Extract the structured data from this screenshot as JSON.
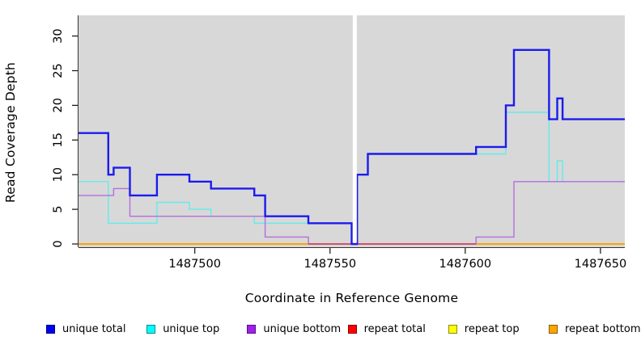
{
  "chart_data": {
    "type": "line",
    "subtype": "step",
    "title": "",
    "xlabel": "Coordinate in Reference Genome",
    "ylabel": "Read Coverage Depth",
    "xlim": [
      1487457,
      1487659
    ],
    "ylim": [
      0,
      33
    ],
    "xticks": [
      1487500,
      1487550,
      1487600,
      1487650
    ],
    "yticks": [
      0,
      5,
      10,
      15,
      20,
      25,
      30
    ],
    "grid": false,
    "panel_bg": "#D8D8D8",
    "gap_region": {
      "from": 1487558.4,
      "to": 1487559.9,
      "color": "#FFFFFF"
    },
    "baseline_overlay": {
      "from": 1487542,
      "to": 1487604,
      "value": 0,
      "color": "#D2486E",
      "note": "baseline appears pink where unique bottom coverage is 0 over repeat lines"
    },
    "series": [
      {
        "name": "unique total",
        "line_color": "#1B1BEE",
        "legend_color": "#0000EE",
        "line_width": 2.4,
        "steps": [
          [
            1487457,
            16
          ],
          [
            1487468,
            10
          ],
          [
            1487470,
            11
          ],
          [
            1487476,
            7
          ],
          [
            1487486,
            10
          ],
          [
            1487498,
            9
          ],
          [
            1487506,
            8
          ],
          [
            1487522,
            7
          ],
          [
            1487526,
            4
          ],
          [
            1487542,
            3
          ],
          [
            1487558,
            0
          ],
          [
            1487560,
            10
          ],
          [
            1487564,
            13
          ],
          [
            1487604,
            14
          ],
          [
            1487615,
            20
          ],
          [
            1487618,
            28
          ],
          [
            1487631,
            18
          ],
          [
            1487634,
            21
          ],
          [
            1487636,
            18
          ],
          [
            1487659,
            18
          ]
        ]
      },
      {
        "name": "unique top",
        "line_color": "#63EBEB",
        "legend_color": "#00FFFF",
        "line_width": 1.4,
        "steps": [
          [
            1487457,
            9
          ],
          [
            1487468,
            3
          ],
          [
            1487486,
            6
          ],
          [
            1487498,
            5
          ],
          [
            1487506,
            4
          ],
          [
            1487522,
            3
          ],
          [
            1487558,
            0
          ],
          [
            1487560,
            10
          ],
          [
            1487564,
            13
          ],
          [
            1487615,
            19
          ],
          [
            1487631,
            9
          ],
          [
            1487634,
            12
          ],
          [
            1487636,
            9
          ],
          [
            1487659,
            9
          ]
        ]
      },
      {
        "name": "unique bottom",
        "line_color": "#B46EDC",
        "legend_color": "#A020F0",
        "line_width": 1.4,
        "steps": [
          [
            1487457,
            7
          ],
          [
            1487470,
            8
          ],
          [
            1487476,
            4
          ],
          [
            1487526,
            1
          ],
          [
            1487542,
            0
          ],
          [
            1487604,
            1
          ],
          [
            1487618,
            9
          ],
          [
            1487659,
            9
          ]
        ]
      },
      {
        "name": "repeat total",
        "line_color": "#E00000",
        "legend_color": "#FF0000",
        "line_width": 1.4,
        "steps": [
          [
            1487457,
            0
          ],
          [
            1487659,
            0
          ]
        ]
      },
      {
        "name": "repeat top",
        "line_color": "#FFFF00",
        "legend_color": "#FFFF00",
        "line_width": 1.4,
        "steps": [
          [
            1487457,
            0
          ],
          [
            1487659,
            0
          ]
        ]
      },
      {
        "name": "repeat bottom",
        "line_color": "#FFA300",
        "legend_color": "#FFA500",
        "line_width": 2,
        "steps": [
          [
            1487457,
            0
          ],
          [
            1487659,
            0
          ]
        ]
      }
    ],
    "legend": {
      "position": "bottom",
      "items": [
        {
          "label": "unique total",
          "color": "#0000EE"
        },
        {
          "label": "unique top",
          "color": "#00FFFF"
        },
        {
          "label": "unique bottom",
          "color": "#A020F0"
        },
        {
          "label": "repeat total",
          "color": "#FF0000"
        },
        {
          "label": "repeat top",
          "color": "#FFFF00"
        },
        {
          "label": "repeat bottom",
          "color": "#FFA500"
        }
      ]
    }
  }
}
